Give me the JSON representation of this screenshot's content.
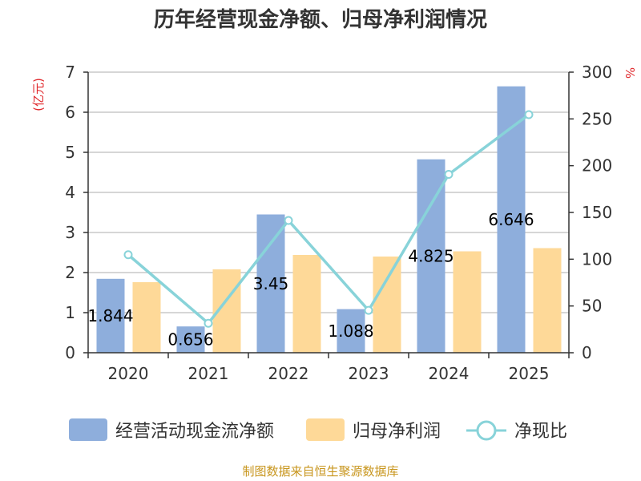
{
  "title": "历年经营现金净额、归母净利润情况",
  "source": "制图数据来自恒生聚源数据库",
  "chart_data": {
    "type": "bar",
    "title": "历年经营现金净额、归母净利润情况",
    "categories": [
      "2020",
      "2021",
      "2022",
      "2023",
      "2024",
      "2025"
    ],
    "left_axis": {
      "unit": "(亿元)",
      "ylim": [
        0,
        7
      ],
      "ticks": [
        "0",
        "1",
        "2",
        "3",
        "4",
        "5",
        "6",
        "7"
      ]
    },
    "right_axis": {
      "unit": "%",
      "ylim": [
        0,
        300
      ],
      "ticks": [
        "0",
        "50",
        "100",
        "150",
        "200",
        "250",
        "300"
      ]
    },
    "grid": true,
    "legend_position": "bottom",
    "series": [
      {
        "name": "经营活动现金流净额",
        "type": "bar",
        "axis": "left",
        "color": "#8eaedc",
        "values": [
          1.844,
          0.656,
          3.45,
          1.088,
          4.825,
          6.646
        ],
        "labels": [
          "1.844",
          "0.656",
          "3.45",
          "1.088",
          "4.825",
          "6.646"
        ]
      },
      {
        "name": "归母净利润",
        "type": "bar",
        "axis": "left",
        "color": "#fed998",
        "values": [
          1.76,
          2.08,
          2.44,
          2.4,
          2.53,
          2.61
        ]
      },
      {
        "name": "净现比",
        "type": "line",
        "axis": "right",
        "color": "#88d3d9",
        "values": [
          104.8,
          31.5,
          141.4,
          45.3,
          190.7,
          254.6
        ]
      }
    ]
  }
}
